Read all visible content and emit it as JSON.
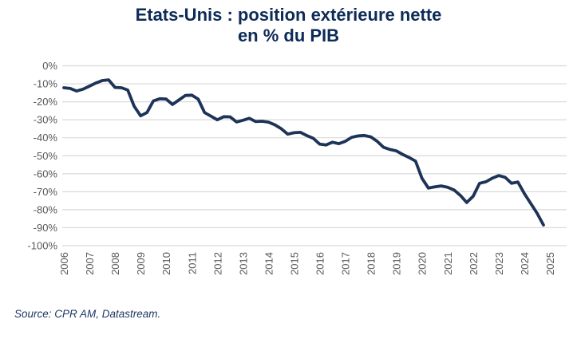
{
  "title": {
    "line1": "Etats-Unis : position extérieure nette",
    "line2": "en % du PIB",
    "color": "#0d2b57"
  },
  "source": {
    "text": "Source: CPR AM, Datastream."
  },
  "chart_data": {
    "type": "line",
    "title": "Etats-Unis : position extérieure nette en % du PIB",
    "ylabel": "% du PIB",
    "ylim": [
      -100,
      0
    ],
    "grid": "horizontal",
    "legend": "none",
    "line_color": "#1d3357",
    "gridline_color": "#d9d9d9",
    "axis_label_color": "#595959",
    "x_tick_labels": [
      "2006",
      "2007",
      "2008",
      "2009",
      "2010",
      "2011",
      "2012",
      "2013",
      "2014",
      "2015",
      "2016",
      "2017",
      "2018",
      "2019",
      "2020",
      "2021",
      "2022",
      "2023",
      "2024",
      "2025"
    ],
    "y_tick_labels": [
      "0%",
      "-10%",
      "-20%",
      "-30%",
      "-40%",
      "-50%",
      "-60%",
      "-70%",
      "-80%",
      "-90%",
      "-100%"
    ],
    "series": [
      {
        "name": "Position extérieure nette des Etats-Unis (% du PIB)",
        "start": "2006-Q1",
        "frequency": "quarterly",
        "values": [
          -12.2,
          -12.6,
          -14.0,
          -13.0,
          -11.3,
          -9.6,
          -8.2,
          -7.8,
          -12.0,
          -12.2,
          -13.5,
          -22.5,
          -27.8,
          -26.0,
          -19.5,
          -18.3,
          -18.5,
          -21.5,
          -19.0,
          -16.5,
          -16.3,
          -18.5,
          -26.0,
          -28.0,
          -30.0,
          -28.3,
          -28.4,
          -31.2,
          -30.3,
          -29.2,
          -31.0,
          -30.8,
          -31.3,
          -32.8,
          -35.0,
          -38.0,
          -37.2,
          -37.0,
          -38.8,
          -40.3,
          -43.5,
          -44.0,
          -42.5,
          -43.3,
          -42.0,
          -39.8,
          -39.0,
          -38.7,
          -39.5,
          -42.0,
          -45.3,
          -46.5,
          -47.3,
          -49.3,
          -51.0,
          -53.0,
          -62.5,
          -68.0,
          -67.3,
          -66.8,
          -67.5,
          -69.0,
          -72.0,
          -76.0,
          -72.5,
          -65.3,
          -64.5,
          -62.5,
          -61.0,
          -62.0,
          -65.3,
          -64.6,
          -71.0,
          -76.5,
          -82.0,
          -88.5
        ]
      }
    ]
  }
}
